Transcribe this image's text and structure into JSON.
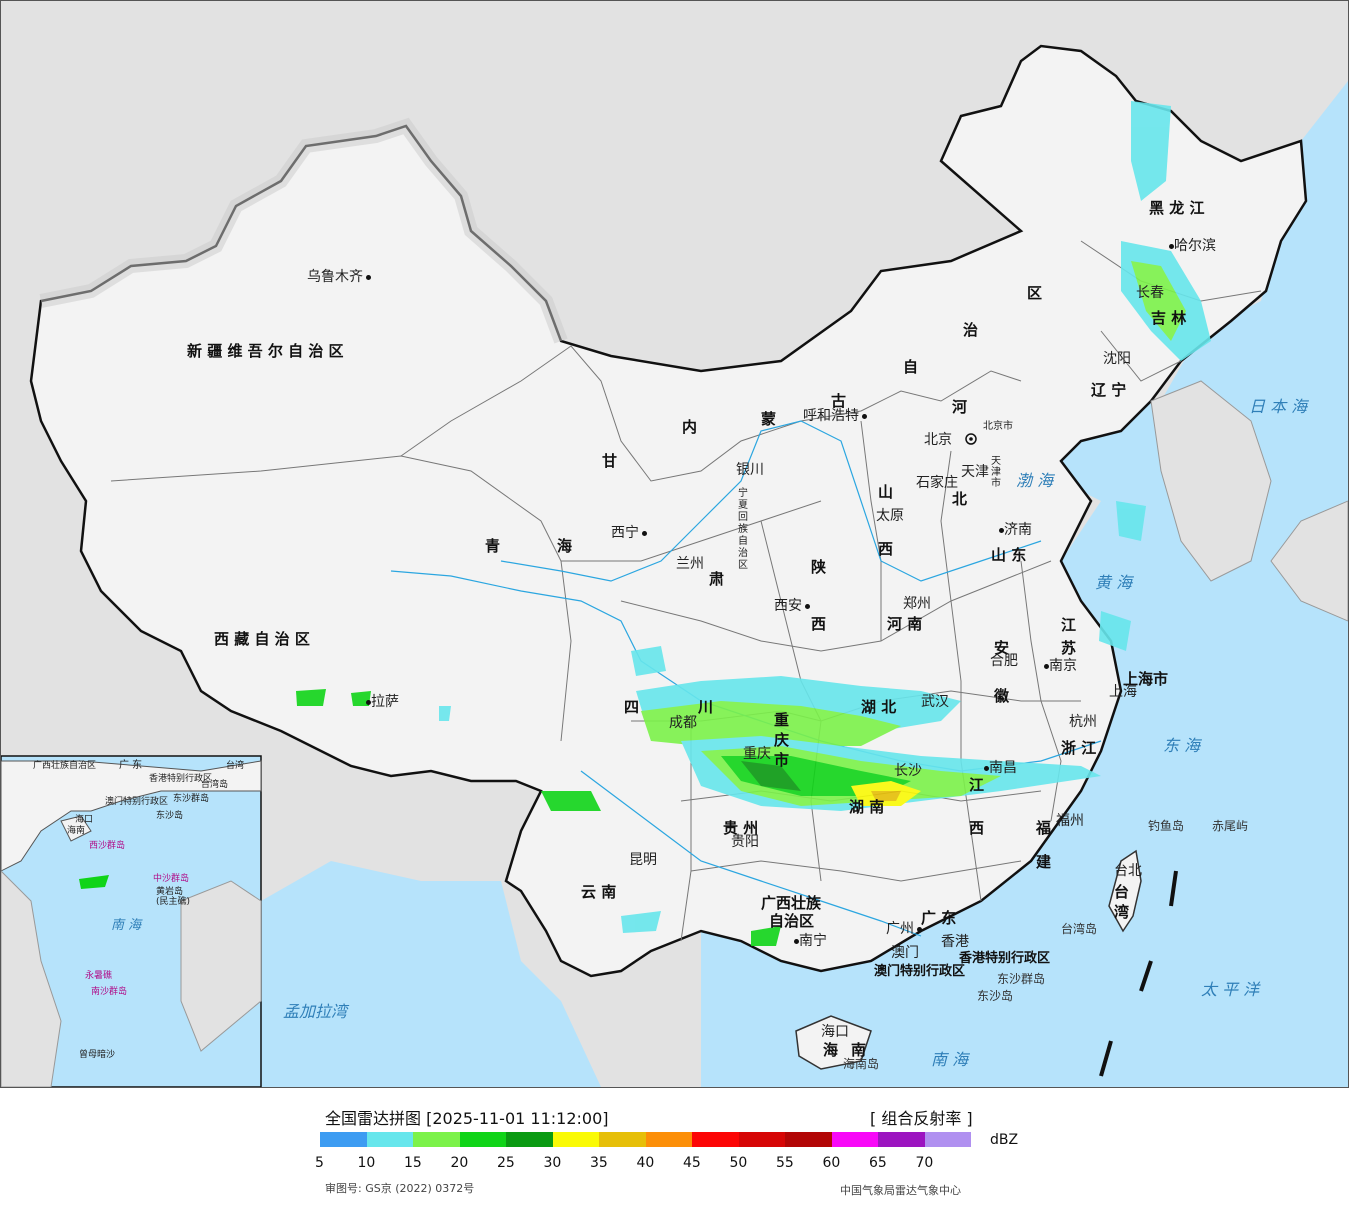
{
  "map": {
    "cities": [
      {
        "key": "urumqi",
        "name": "乌鲁木齐"
      },
      {
        "key": "lhasa",
        "name": "拉萨"
      },
      {
        "key": "xining",
        "name": "西宁"
      },
      {
        "key": "lanzhou",
        "name": "兰州"
      },
      {
        "key": "yinchuan",
        "name": "银川"
      },
      {
        "key": "hohhot",
        "name": "呼和浩特"
      },
      {
        "key": "beijing",
        "name": "北京"
      },
      {
        "key": "beijingshi",
        "name": "北京市"
      },
      {
        "key": "tianjin",
        "name": "天津"
      },
      {
        "key": "shijiazhuang",
        "name": "石家庄"
      },
      {
        "key": "taiyuan",
        "name": "太原"
      },
      {
        "key": "jinan",
        "name": "济南"
      },
      {
        "key": "zhengzhou",
        "name": "郑州"
      },
      {
        "key": "xian",
        "name": "西安"
      },
      {
        "key": "hefei",
        "name": "合肥"
      },
      {
        "key": "nanjing",
        "name": "南京"
      },
      {
        "key": "shanghai",
        "name": "上海"
      },
      {
        "key": "hangzhou",
        "name": "杭州"
      },
      {
        "key": "wuhan",
        "name": "武汉"
      },
      {
        "key": "chengdu",
        "name": "成都"
      },
      {
        "key": "chongqing",
        "name": "重庆"
      },
      {
        "key": "changsha",
        "name": "长沙"
      },
      {
        "key": "nanchang",
        "name": "南昌"
      },
      {
        "key": "fuzhou",
        "name": "福州"
      },
      {
        "key": "guiyang",
        "name": "贵阳"
      },
      {
        "key": "kunming",
        "name": "昆明"
      },
      {
        "key": "nanning",
        "name": "南宁"
      },
      {
        "key": "guangzhou",
        "name": "广州"
      },
      {
        "key": "xianggang",
        "name": "香港"
      },
      {
        "key": "aomen",
        "name": "澳门"
      },
      {
        "key": "haikou",
        "name": "海口"
      },
      {
        "key": "taibei",
        "name": "台北"
      },
      {
        "key": "shenyang",
        "name": "沈阳"
      },
      {
        "key": "changchun",
        "name": "长春"
      },
      {
        "key": "harbin",
        "name": "哈尔滨"
      }
    ],
    "provinces": {
      "xinjiang": "新 疆 维 吾 尔 自 治 区",
      "xizang": "西 藏 自 治 区",
      "qinghai_1": "青",
      "qinghai_2": "海",
      "gansu": "甘",
      "su": "肃",
      "neimenggu_1": "内",
      "neimenggu_2": "蒙",
      "neimenggu_3": "古",
      "neimenggu_4": "自",
      "neimenggu_5": "治",
      "neimenggu_6": "区",
      "ningxia": "宁夏回族自治区",
      "shaanxi_1": "陕",
      "shaanxi_2": "西",
      "shanxi_1": "山",
      "shanxi_2": "西",
      "hebei_1": "河",
      "hebei_2": "北",
      "shandong": "山 东",
      "henan": "河 南",
      "anhui_1": "安",
      "anhui_2": "徽",
      "jiangsu_1": "江",
      "jiangsu_2": "苏",
      "shanghaishi": "上海市",
      "zhejiang": "浙 江",
      "hubei": "湖 北",
      "sichuan_1": "四",
      "sichuan_2": "川",
      "chongqingshi": "重 庆 市",
      "hunan": "湖 南",
      "jiangxi_1": "江",
      "jiangxi_2": "西",
      "fujian_1": "福",
      "fujian_2": "建",
      "guizhou": "贵 州",
      "yunnan": "云 南",
      "guangxi": "广西壮族",
      "guangxi_2": "自治区",
      "guangdong": "广 东",
      "hainan_1": "海",
      "hainan_2": "南",
      "taiwan_1": "台",
      "taiwan_2": "湾",
      "heilongjiang": "黑 龙 江",
      "jilin": "吉 林",
      "liaoning": "辽 宁",
      "xianggang_sar": "香港特别行政区",
      "aomen_sar": "澳门特别行政区",
      "tianjinshi": "天津市"
    },
    "seas": {
      "bohai": "渤 海",
      "huanghai": "黄 海",
      "donghai": "东 海",
      "nanhai": "南 海",
      "taipingyang": "太 平 洋",
      "ribenhai": "日 本 海",
      "mengjialawan": "孟加拉湾"
    },
    "islands": {
      "diaoyudao": "钓鱼岛",
      "chiweiyu": "赤尾屿",
      "dongshaqundao": "东沙群岛",
      "dongshadao": "东沙岛",
      "hainandao": "海南岛",
      "taiwandao": "台湾岛"
    },
    "inset": {
      "guangdong": "广 东",
      "guangxi": "广西壮族自治区",
      "xianggang": "香港特别行政区",
      "aomen": "澳门特别行政区",
      "taiwan": "台湾",
      "taiwandao": "台湾岛",
      "dongshaqundao": "东沙群岛",
      "dongshadao": "东沙岛",
      "haikou": "海口",
      "hainan": "海南",
      "xishaqundao": "西沙群岛",
      "zhongshaqundao": "中沙群岛",
      "huangyandao": "黄岩岛",
      "minzhujiao": "(民主礁)",
      "nanhai": "南 海",
      "yongshujiao": "永暑礁",
      "nanshaqundao": "南沙群岛",
      "zengmuansha": "曾母暗沙"
    }
  },
  "legend": {
    "title": "全国雷达拼图 [2025-11-01 11:12:00]",
    "product": "[ 组合反射率 ]",
    "unit": "dBZ",
    "colors": [
      "#3d9cf2",
      "#67e6ec",
      "#7cf24a",
      "#10d418",
      "#0a9a12",
      "#fafa06",
      "#e6bf08",
      "#fc8f08",
      "#fc0606",
      "#d60606",
      "#b20606",
      "#f808f8",
      "#9c14c0",
      "#b090f0"
    ],
    "ticks": [
      "5",
      "10",
      "15",
      "20",
      "25",
      "30",
      "35",
      "40",
      "45",
      "50",
      "55",
      "60",
      "65",
      "70"
    ],
    "review_no": "审图号: GS京 (2022) 0372号",
    "source": "中国气象局雷达气象中心"
  }
}
